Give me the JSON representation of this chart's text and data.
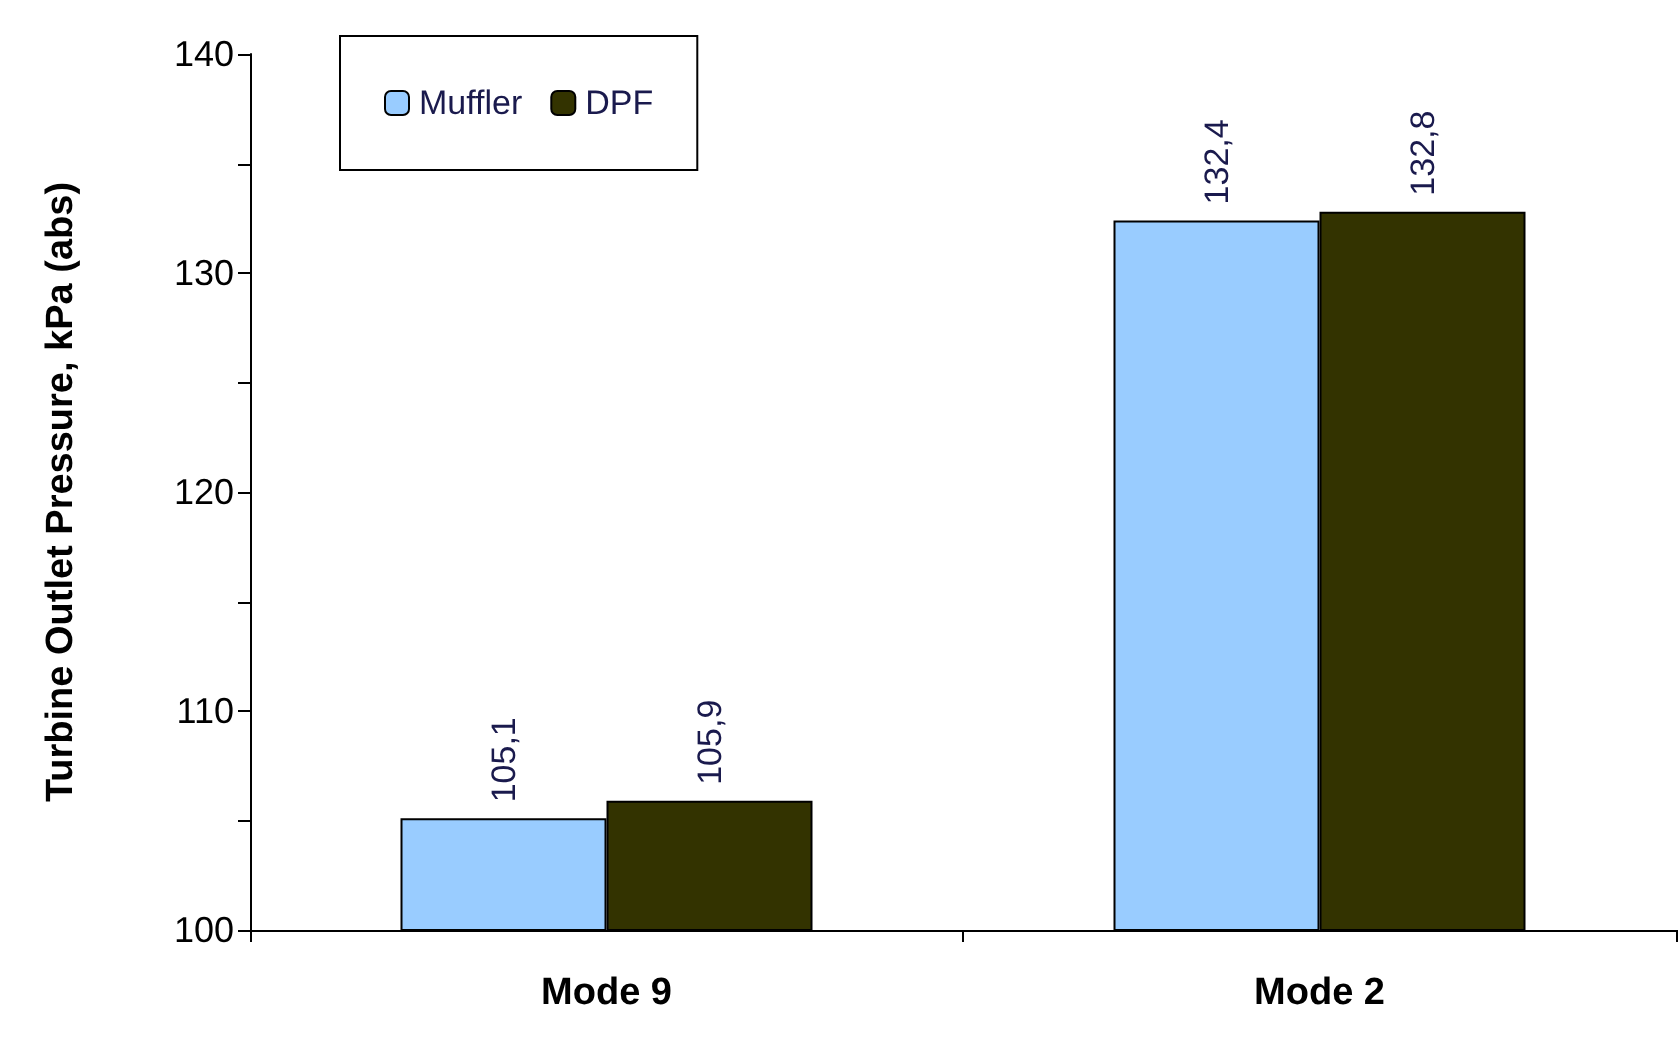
{
  "chart_data": {
    "type": "bar",
    "ylabel": "Turbine Outlet Pressure, kPa (abs)",
    "categories": [
      "Mode 9",
      "Mode 2"
    ],
    "series": [
      {
        "name": "Muffler",
        "color": "#99ccff",
        "values": [
          105.1,
          132.4
        ],
        "value_labels": [
          "105,1",
          "132,4"
        ]
      },
      {
        "name": "DPF",
        "color": "#333300",
        "values": [
          105.9,
          132.8
        ],
        "value_labels": [
          "105,9",
          "132,8"
        ]
      }
    ],
    "ylim": [
      100,
      140
    ],
    "yticks": [
      100,
      110,
      120,
      130,
      140
    ],
    "grid": false,
    "legend": "top left"
  }
}
